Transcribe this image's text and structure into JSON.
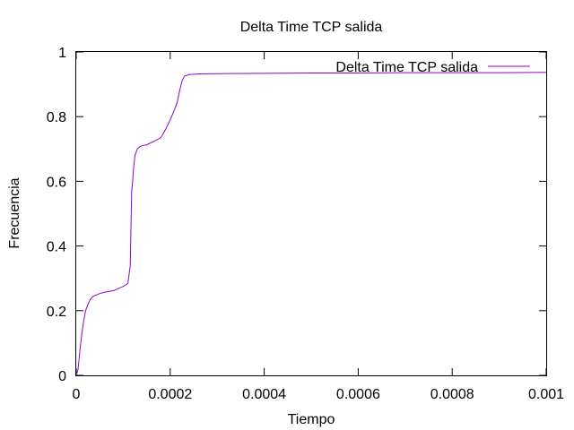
{
  "chart_data": {
    "type": "line",
    "title": "Delta Time TCP salida",
    "xlabel": "Tiempo",
    "ylabel": "Frecuencia",
    "xlim": [
      0,
      0.001
    ],
    "ylim": [
      0,
      1
    ],
    "xticks": [
      0,
      0.0002,
      0.0004,
      0.0006,
      0.0008,
      0.001
    ],
    "xtick_labels": [
      "0",
      "0.0002",
      "0.0004",
      "0.0006",
      "0.0008",
      "0.001"
    ],
    "yticks": [
      0,
      0.2,
      0.4,
      0.6,
      0.8,
      1
    ],
    "ytick_labels": [
      "0",
      "0.2",
      "0.4",
      "0.6",
      "0.8",
      "1"
    ],
    "grid": false,
    "legend_position": "top-right",
    "series": [
      {
        "name": "Delta Time TCP salida",
        "color": "#9400d3",
        "x": [
          0,
          4e-06,
          8e-06,
          1.2e-05,
          1.6e-05,
          2e-05,
          2.5e-05,
          3e-05,
          3.5e-05,
          4e-05,
          5e-05,
          6e-05,
          8e-05,
          0.0001,
          0.00011,
          0.000115,
          0.000116,
          0.000118,
          0.00012,
          0.000122,
          0.000125,
          0.00013,
          0.000135,
          0.00014,
          0.00015,
          0.00016,
          0.00017,
          0.00018,
          0.00019,
          0.0002,
          0.00021,
          0.000215,
          0.00022,
          0.000225,
          0.00023,
          0.00024,
          0.00026,
          0.0003,
          0.0004,
          0.0005,
          0.0006,
          0.0007,
          0.0008,
          0.0009,
          0.001
        ],
        "y": [
          0.0,
          0.02,
          0.08,
          0.13,
          0.17,
          0.2,
          0.22,
          0.235,
          0.243,
          0.247,
          0.253,
          0.257,
          0.262,
          0.275,
          0.285,
          0.34,
          0.42,
          0.57,
          0.6,
          0.64,
          0.68,
          0.7,
          0.707,
          0.71,
          0.713,
          0.72,
          0.727,
          0.735,
          0.76,
          0.79,
          0.825,
          0.845,
          0.88,
          0.91,
          0.925,
          0.93,
          0.932,
          0.933,
          0.934,
          0.935,
          0.935,
          0.936,
          0.936,
          0.936,
          0.937
        ]
      }
    ]
  }
}
